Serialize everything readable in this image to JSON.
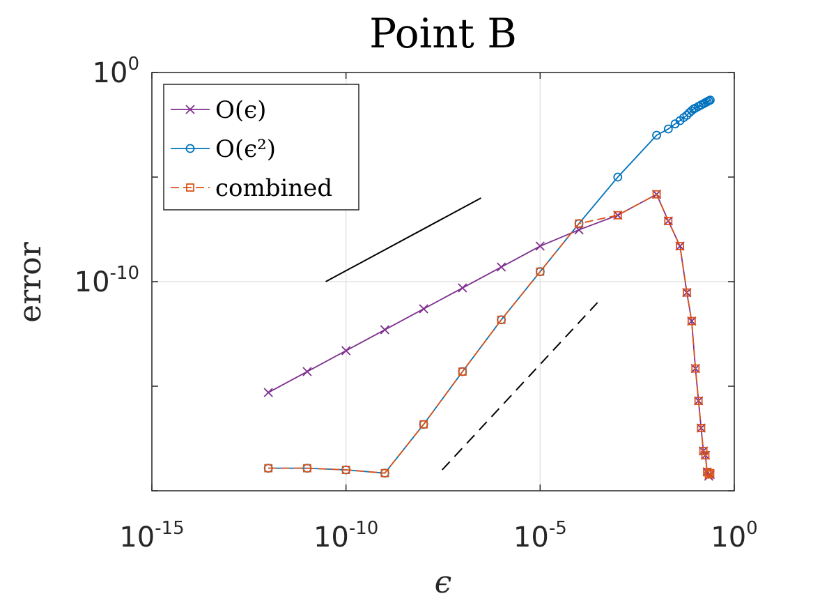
{
  "chart_data": {
    "type": "line",
    "title": "Point B",
    "xlabel": "ϵ",
    "ylabel": "error",
    "xscale": "log",
    "yscale": "log",
    "xlim": [
      1e-15,
      1
    ],
    "ylim": [
      1e-20,
      1
    ],
    "xticks": [
      {
        "base": "10",
        "exp": "-15",
        "value": 1e-15
      },
      {
        "base": "10",
        "exp": "-10",
        "value": 1e-10
      },
      {
        "base": "10",
        "exp": "-5",
        "value": 1e-05
      },
      {
        "base": "10",
        "exp": "0",
        "value": 1
      }
    ],
    "yticks": [
      {
        "base": "10",
        "exp": "0",
        "value": 1
      },
      {
        "base": "10",
        "exp": "-10",
        "value": 1e-10
      }
    ],
    "grid": true,
    "legend_position": "top-left",
    "series": [
      {
        "name": "O(ϵ)",
        "color": "#7E2F8E",
        "marker": "x",
        "line": "solid",
        "x": [
          1e-12,
          1e-11,
          1e-10,
          1e-09,
          1e-08,
          1e-07,
          1e-06,
          1e-05,
          0.0001,
          0.001,
          0.01,
          0.02,
          0.04,
          0.06,
          0.08,
          0.1,
          0.12,
          0.14,
          0.16,
          0.18,
          0.2,
          0.22,
          0.24
        ],
        "y": [
          5e-16,
          5e-15,
          5e-14,
          5e-13,
          5e-12,
          5e-11,
          5e-10,
          5e-09,
          3e-08,
          1.5e-07,
          1.5e-06,
          8e-08,
          5e-09,
          3e-11,
          1.3e-12,
          7e-15,
          2e-16,
          1e-17,
          8e-19,
          5e-19,
          8e-20,
          5e-20,
          6e-20
        ],
        "label_visible": true
      },
      {
        "name": "O(ϵ²)",
        "color": "#0072BD",
        "marker": "o",
        "line": "solid",
        "x": [
          1e-12,
          1e-11,
          1e-10,
          1e-09,
          1e-08,
          1e-07,
          1e-06,
          1e-05,
          0.0001,
          0.001,
          0.01,
          0.02,
          0.03,
          0.04,
          0.05,
          0.06,
          0.07,
          0.08,
          0.09,
          0.1,
          0.12,
          0.14,
          0.16,
          0.18,
          0.2,
          0.22,
          0.24
        ],
        "y": [
          1.2e-19,
          1.2e-19,
          1e-19,
          7e-20,
          1.5e-17,
          5e-15,
          1.5e-12,
          3e-10,
          6e-08,
          1e-05,
          0.001,
          0.002,
          0.0035,
          0.005,
          0.007,
          0.009,
          0.012,
          0.015,
          0.018,
          0.02,
          0.024,
          0.028,
          0.032,
          0.036,
          0.04,
          0.044,
          0.048
        ]
      },
      {
        "name": "combined",
        "color": "#D95319",
        "marker": "s",
        "line": "dashed",
        "x": [
          1e-12,
          1e-11,
          1e-10,
          1e-09,
          1e-08,
          1e-07,
          1e-06,
          1e-05,
          0.0001,
          0.001,
          0.01,
          0.02,
          0.04,
          0.06,
          0.08,
          0.1,
          0.12,
          0.14,
          0.16,
          0.18,
          0.2,
          0.22,
          0.24
        ],
        "y": [
          1.2e-19,
          1.2e-19,
          1e-19,
          7e-20,
          1.5e-17,
          5e-15,
          1.5e-12,
          3e-10,
          6e-08,
          1.5e-07,
          1.5e-06,
          8e-08,
          5e-09,
          3e-11,
          1.3e-12,
          7e-15,
          2e-16,
          1e-17,
          8e-19,
          5e-19,
          8e-20,
          6e-20,
          7e-20
        ]
      }
    ],
    "reference_lines": [
      {
        "style": "solid",
        "color": "#000000",
        "x": [
          3e-11,
          3e-07
        ],
        "y": [
          1e-10,
          1e-06
        ]
      },
      {
        "style": "dashed",
        "color": "#000000",
        "x": [
          3e-08,
          0.0003
        ],
        "y": [
          1e-19,
          1e-11
        ]
      }
    ]
  }
}
